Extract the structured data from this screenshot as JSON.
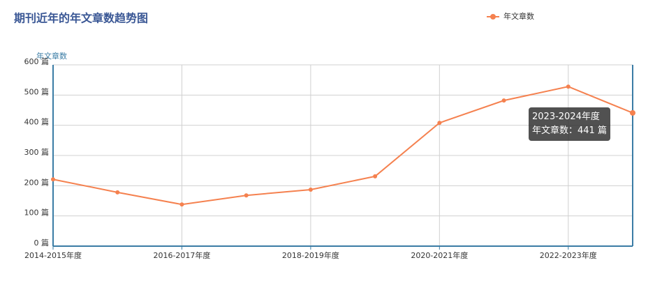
{
  "chart_data": {
    "type": "line",
    "title": "期刊近年的年文章数趋势图",
    "y_axis_label": "年文章数",
    "categories": [
      "2014-2015年度",
      null,
      "2016-2017年度",
      null,
      "2018-2019年度",
      null,
      "2020-2021年度",
      null,
      "2022-2023年度",
      null
    ],
    "series": [
      {
        "name": "年文章数",
        "color": "#f5814f",
        "values": [
          221,
          178,
          138,
          168,
          187,
          231,
          408,
          482,
          528,
          441
        ]
      }
    ],
    "ylim": [
      0,
      600
    ],
    "yticks": [
      {
        "value": 0,
        "label": "0 篇"
      },
      {
        "value": 100,
        "label": "100 篇"
      },
      {
        "value": 200,
        "label": "200 篇"
      },
      {
        "value": 300,
        "label": "300 篇"
      },
      {
        "value": 400,
        "label": "400 篇"
      },
      {
        "value": 500,
        "label": "500 篇"
      },
      {
        "value": 600,
        "label": "600 篇"
      }
    ],
    "grid": true,
    "legend": "top-right",
    "tooltip": {
      "title": "2023-2024年度",
      "text": "年文章数：441 篇"
    }
  }
}
